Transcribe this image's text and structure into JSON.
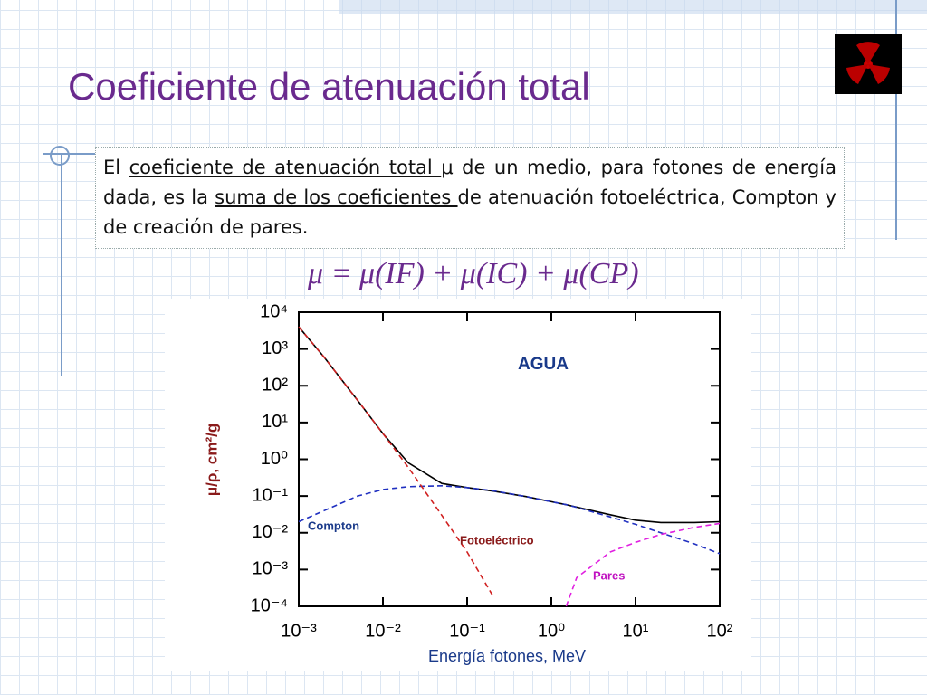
{
  "slide": {
    "title": "Coeficiente de atenuación total",
    "paragraph": [
      "El ",
      "coeficiente de atenuación total ",
      "μ de un medio, para fotones de energía dada, es la ",
      "suma de los coeficientes ",
      "de atenuación fotoeléctrica, Compton y de creación de pares."
    ],
    "formula": "μ = μ(IF) + μ(IC) + μ(CP)"
  },
  "chart_data": {
    "type": "line",
    "annotation": "AGUA",
    "x_label": "Energía fotones, MeV",
    "y_label": "μ/ρ, cm²/g",
    "log_x": true,
    "log_y": true,
    "x": [
      0.001,
      0.002,
      0.005,
      0.01,
      0.02,
      0.05,
      0.1,
      0.2,
      0.5,
      1,
      1.5,
      2,
      5,
      10,
      20,
      50,
      100
    ],
    "series": [
      {
        "color": "#000000",
        "dash": false,
        "values": [
          4000,
          600,
          40,
          5,
          0.8,
          0.22,
          0.17,
          0.137,
          0.097,
          0.07,
          0.058,
          0.05,
          0.031,
          0.022,
          0.019,
          0.019,
          0.02
        ]
      },
      {
        "name": "Compton",
        "color": "#2030c0",
        "dash": true,
        "values": [
          0.02,
          0.04,
          0.1,
          0.15,
          0.18,
          0.19,
          0.17,
          0.14,
          0.097,
          0.07,
          0.058,
          0.049,
          0.027,
          0.017,
          0.01,
          0.005,
          0.0027
        ]
      },
      {
        "name": "Fotoeléctrico",
        "color": "#d02020",
        "dash": true,
        "values": [
          4000,
          600,
          40,
          5,
          0.6,
          0.03,
          0.003,
          0.0002,
          null,
          null,
          null,
          null,
          null,
          null,
          null,
          null,
          null
        ]
      },
      {
        "name": "Pares",
        "color": "#e020e0",
        "dash": true,
        "values": [
          null,
          null,
          null,
          null,
          null,
          null,
          null,
          null,
          null,
          null,
          0.0001,
          0.0006,
          0.003,
          0.0055,
          0.009,
          0.014,
          0.018
        ]
      }
    ],
    "xlim": [
      0.001,
      100
    ],
    "ylim": [
      0.0001,
      10000
    ],
    "xticks": [
      {
        "value": 0.001,
        "label": "10⁻³"
      },
      {
        "value": 0.01,
        "label": "10⁻²"
      },
      {
        "value": 0.1,
        "label": "10⁻¹"
      },
      {
        "value": 1,
        "label": "10⁰"
      },
      {
        "value": 10,
        "label": "10¹"
      },
      {
        "value": 100,
        "label": "10²"
      }
    ],
    "yticks": [
      {
        "value": 0.0001,
        "label": "10⁻⁴"
      },
      {
        "value": 0.001,
        "label": "10⁻³"
      },
      {
        "value": 0.01,
        "label": "10⁻²"
      },
      {
        "value": 0.1,
        "label": "10⁻¹"
      },
      {
        "value": 1,
        "label": "10⁰"
      },
      {
        "value": 10,
        "label": "10¹"
      },
      {
        "value": 100,
        "label": "10²"
      },
      {
        "value": 1000,
        "label": "10³"
      },
      {
        "value": 10000,
        "label": "10⁴"
      }
    ]
  }
}
